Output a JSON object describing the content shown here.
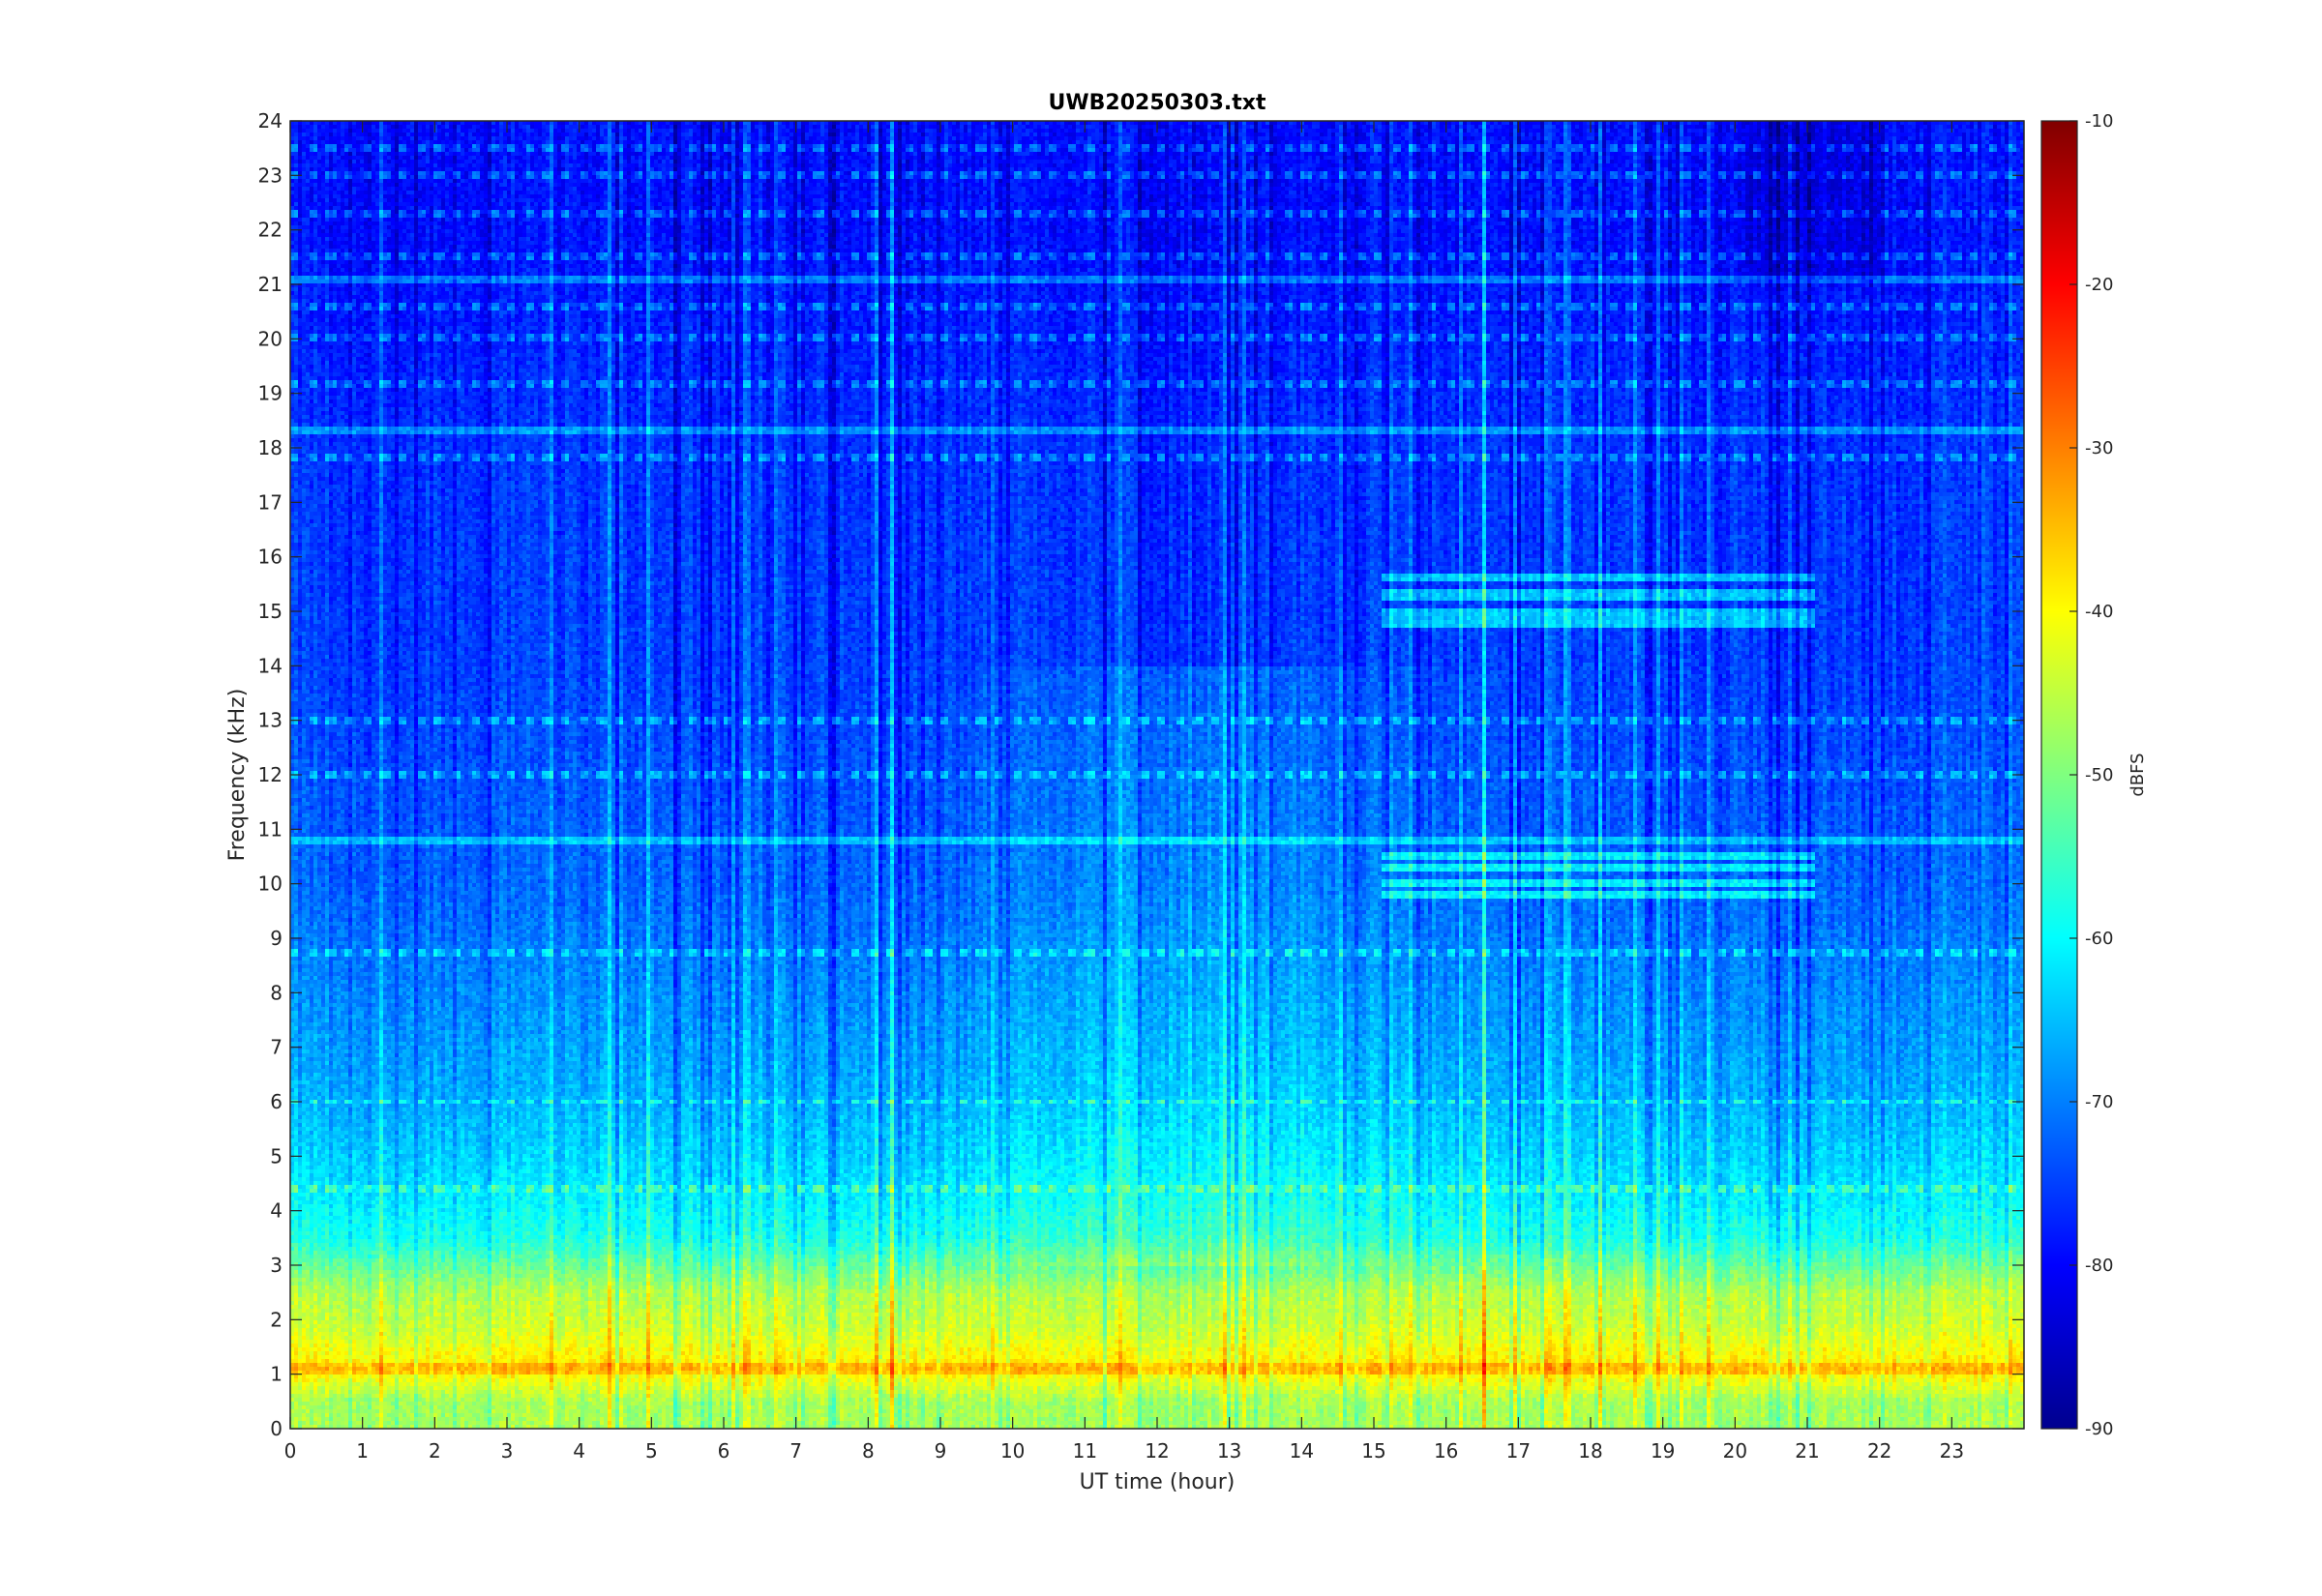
{
  "chart_data": {
    "type": "heatmap",
    "title": "UWB20250303.txt",
    "xlabel": "UT time (hour)",
    "ylabel": "Frequency (kHz)",
    "xlim": [
      0,
      24
    ],
    "ylim": [
      0,
      24
    ],
    "x_ticks": [
      "0",
      "1",
      "2",
      "3",
      "4",
      "5",
      "6",
      "7",
      "8",
      "9",
      "10",
      "11",
      "12",
      "13",
      "14",
      "15",
      "16",
      "17",
      "18",
      "19",
      "20",
      "21",
      "22",
      "23"
    ],
    "y_ticks": [
      "0",
      "1",
      "2",
      "3",
      "4",
      "5",
      "6",
      "7",
      "8",
      "9",
      "10",
      "11",
      "12",
      "13",
      "14",
      "15",
      "16",
      "17",
      "18",
      "19",
      "20",
      "21",
      "22",
      "23",
      "24"
    ],
    "colormap": "jet",
    "colorbar": {
      "label": "dBFS",
      "range": [
        -90,
        -10
      ],
      "ticks": [
        "-90",
        "-80",
        "-70",
        "-60",
        "-50",
        "-40",
        "-30",
        "-20",
        "-10"
      ]
    },
    "features": {
      "low_band_level_dbfs": [
        {
          "freq_khz": 0.5,
          "level": -47
        },
        {
          "freq_khz": 1.1,
          "level": -38
        },
        {
          "freq_khz": 1.9,
          "level": -44
        },
        {
          "freq_khz": 2.5,
          "level": -46
        },
        {
          "freq_khz": 3.5,
          "level": -58
        },
        {
          "freq_khz": 4.5,
          "level": -62
        },
        {
          "freq_khz": 6.0,
          "level": -66
        },
        {
          "freq_khz": 8.0,
          "level": -69
        },
        {
          "freq_khz": 10.0,
          "level": -72
        },
        {
          "freq_khz": 14.0,
          "level": -75
        },
        {
          "freq_khz": 18.0,
          "level": -76
        },
        {
          "freq_khz": 22.0,
          "level": -79
        }
      ],
      "horizontal_lines_khz": [
        4.4,
        6.0,
        8.7,
        10.8,
        12.0,
        13.0,
        17.8,
        18.3,
        19.2,
        20.0,
        20.6,
        21.1,
        21.5,
        22.3,
        23.0,
        23.5
      ],
      "tone_group_1": {
        "t_start": 15.1,
        "t_end": 21.1,
        "freqs_khz": [
          14.8,
          15.0,
          15.3,
          15.6
        ]
      },
      "tone_group_2": {
        "t_start": 15.1,
        "t_end": 21.1,
        "freqs_khz": [
          9.8,
          10.0,
          10.3,
          10.5
        ]
      },
      "vertical_streaks_hours": [
        4.4,
        8.3,
        15.2,
        16.5,
        17.6,
        18.1
      ]
    }
  }
}
